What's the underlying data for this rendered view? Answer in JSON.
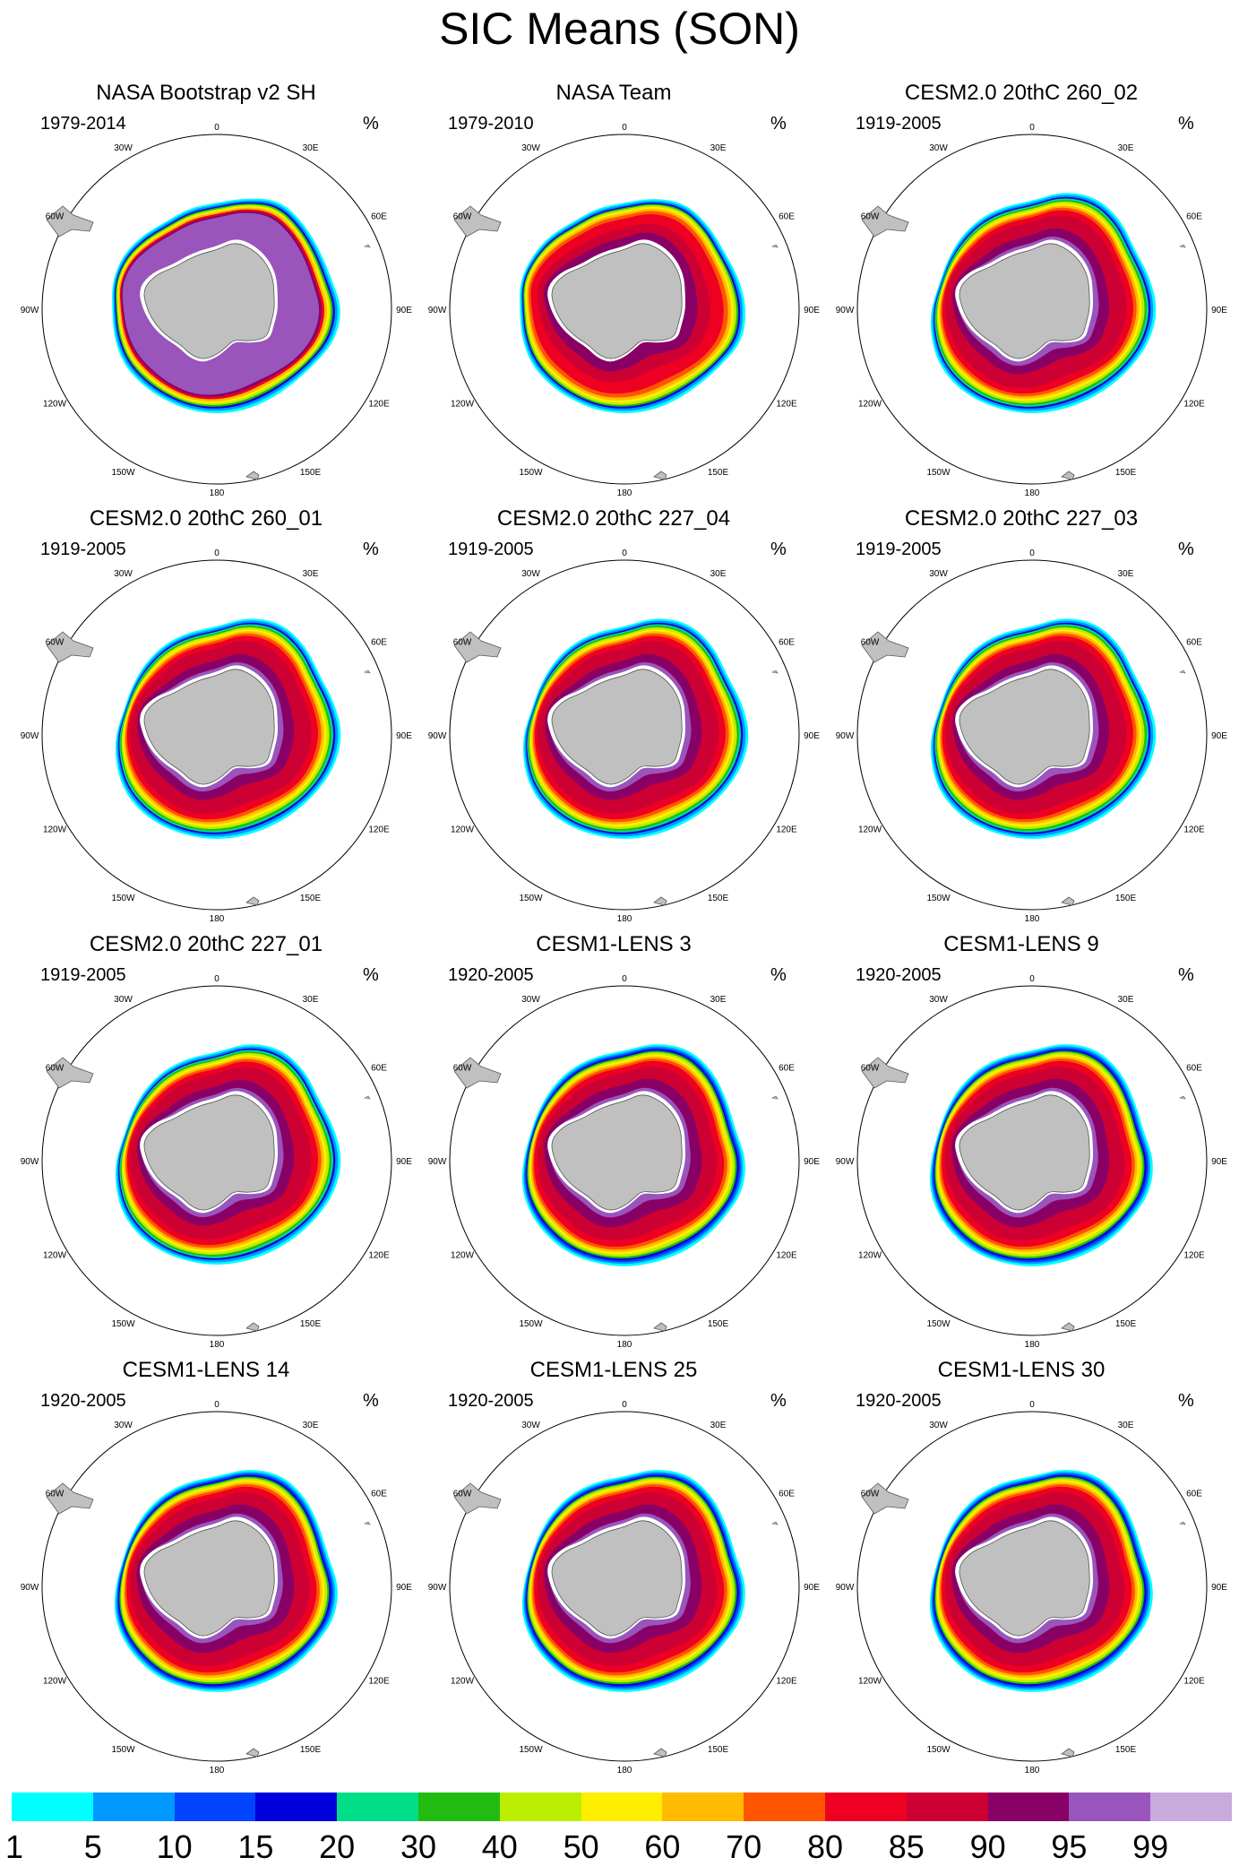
{
  "title": "SIC Means (SON)",
  "unit_label": "%",
  "panels": [
    {
      "title": "NASA Bootstrap v2 SH",
      "period": "1979-2014",
      "variant": "obs1"
    },
    {
      "title": "NASA Team",
      "period": "1979-2010",
      "variant": "obs2"
    },
    {
      "title": "CESM2.0 20thC 260_02",
      "period": "1919-2005",
      "variant": "model"
    },
    {
      "title": "CESM2.0 20thC 260_01",
      "period": "1919-2005",
      "variant": "model"
    },
    {
      "title": "CESM2.0 20thC 227_04",
      "period": "1919-2005",
      "variant": "model"
    },
    {
      "title": "CESM2.0 20thC 227_03",
      "period": "1919-2005",
      "variant": "model"
    },
    {
      "title": "CESM2.0 20thC 227_01",
      "period": "1919-2005",
      "variant": "model"
    },
    {
      "title": "CESM1-LENS 3",
      "period": "1920-2005",
      "variant": "lens"
    },
    {
      "title": "CESM1-LENS 9",
      "period": "1920-2005",
      "variant": "lens"
    },
    {
      "title": "CESM1-LENS 14",
      "period": "1920-2005",
      "variant": "lens"
    },
    {
      "title": "CESM1-LENS 25",
      "period": "1920-2005",
      "variant": "lens"
    },
    {
      "title": "CESM1-LENS 30",
      "period": "1920-2005",
      "variant": "lens"
    }
  ],
  "map_labels": {
    "lon_0": "0",
    "lon_30e": "30E",
    "lon_60e": "60E",
    "lon_90e": "90E",
    "lon_120e": "120E",
    "lon_150e": "150E",
    "lon_180": "180",
    "lon_150w": "150W",
    "lon_120w": "120W",
    "lon_90w": "90W",
    "lon_60w": "60W",
    "lon_30w": "30W"
  },
  "colorbar": {
    "ticks": [
      "1",
      "5",
      "10",
      "15",
      "20",
      "30",
      "40",
      "50",
      "60",
      "70",
      "80",
      "85",
      "90",
      "95",
      "99"
    ],
    "colors": [
      "#00ffff",
      "#0099ff",
      "#0044ff",
      "#0000dd",
      "#00dd88",
      "#22bb11",
      "#bbee00",
      "#ffee00",
      "#ffbb00",
      "#ff5500",
      "#ee0022",
      "#cc0033",
      "#880066",
      "#9955bb",
      "#c8aadd"
    ]
  },
  "colors": {
    "land": "#c0c0c0",
    "background": "#ffffff",
    "coast": "#555555"
  }
}
